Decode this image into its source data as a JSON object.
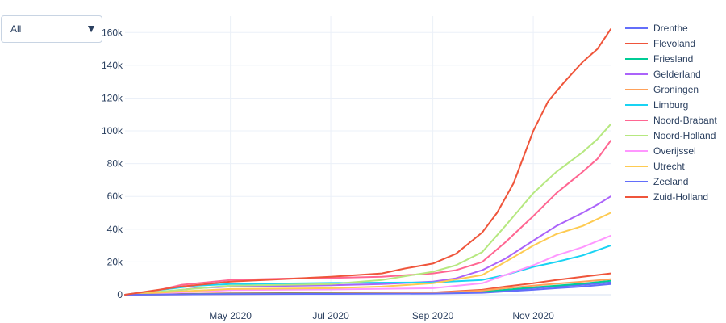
{
  "dropdown": {
    "selected": "All",
    "arrow_icon": "triangle-down-icon"
  },
  "chart_data": {
    "type": "line",
    "x_start": "2020-02-27",
    "x_end": "2020-12-18",
    "x_ticks": [
      {
        "date": "2020-05-01",
        "label": "May 2020"
      },
      {
        "date": "2020-07-01",
        "label": "Jul 2020"
      },
      {
        "date": "2020-09-01",
        "label": "Sep 2020"
      },
      {
        "date": "2020-11-01",
        "label": "Nov 2020"
      }
    ],
    "ylim": [
      0,
      170000
    ],
    "y_ticks": [
      {
        "value": 0,
        "label": "0"
      },
      {
        "value": 20000,
        "label": "20k"
      },
      {
        "value": 40000,
        "label": "40k"
      },
      {
        "value": 60000,
        "label": "60k"
      },
      {
        "value": 80000,
        "label": "80k"
      },
      {
        "value": 100000,
        "label": "100k"
      },
      {
        "value": 120000,
        "label": "120k"
      },
      {
        "value": 140000,
        "label": "140k"
      },
      {
        "value": 160000,
        "label": "160k"
      }
    ],
    "grid": true,
    "legend_position": "right",
    "series": [
      {
        "name": "Drenthe",
        "color": "#636efa",
        "points": [
          [
            "2020-02-27",
            0
          ],
          [
            "2020-04-01",
            300
          ],
          [
            "2020-05-01",
            600
          ],
          [
            "2020-07-01",
            750
          ],
          [
            "2020-09-01",
            900
          ],
          [
            "2020-10-01",
            1500
          ],
          [
            "2020-10-15",
            2500
          ],
          [
            "2020-11-01",
            4000
          ],
          [
            "2020-11-15",
            5000
          ],
          [
            "2020-12-01",
            6000
          ],
          [
            "2020-12-18",
            7500
          ]
        ]
      },
      {
        "name": "Flevoland",
        "color": "#ef553b",
        "points": [
          [
            "2020-02-27",
            0
          ],
          [
            "2020-04-01",
            500
          ],
          [
            "2020-05-01",
            900
          ],
          [
            "2020-07-01",
            1100
          ],
          [
            "2020-09-01",
            1400
          ],
          [
            "2020-10-01",
            3000
          ],
          [
            "2020-10-15",
            5000
          ],
          [
            "2020-11-01",
            7000
          ],
          [
            "2020-11-15",
            9000
          ],
          [
            "2020-12-01",
            11000
          ],
          [
            "2020-12-18",
            13000
          ]
        ]
      },
      {
        "name": "Friesland",
        "color": "#00cc96",
        "points": [
          [
            "2020-02-27",
            0
          ],
          [
            "2020-04-01",
            300
          ],
          [
            "2020-05-01",
            600
          ],
          [
            "2020-07-01",
            800
          ],
          [
            "2020-09-01",
            1000
          ],
          [
            "2020-10-01",
            1800
          ],
          [
            "2020-10-15",
            3000
          ],
          [
            "2020-11-01",
            4500
          ],
          [
            "2020-11-15",
            5500
          ],
          [
            "2020-12-01",
            6800
          ],
          [
            "2020-12-18",
            8500
          ]
        ]
      },
      {
        "name": "Gelderland",
        "color": "#ab63fa",
        "points": [
          [
            "2020-02-27",
            0
          ],
          [
            "2020-03-20",
            1500
          ],
          [
            "2020-04-10",
            4000
          ],
          [
            "2020-05-01",
            5000
          ],
          [
            "2020-07-01",
            5800
          ],
          [
            "2020-08-01",
            6500
          ],
          [
            "2020-09-01",
            8000
          ],
          [
            "2020-09-15",
            10000
          ],
          [
            "2020-10-01",
            15000
          ],
          [
            "2020-10-15",
            22000
          ],
          [
            "2020-11-01",
            33000
          ],
          [
            "2020-11-15",
            42000
          ],
          [
            "2020-12-01",
            50000
          ],
          [
            "2020-12-10",
            55000
          ],
          [
            "2020-12-18",
            60000
          ]
        ]
      },
      {
        "name": "Groningen",
        "color": "#ffa15a",
        "points": [
          [
            "2020-02-27",
            0
          ],
          [
            "2020-04-01",
            200
          ],
          [
            "2020-05-01",
            400
          ],
          [
            "2020-07-01",
            600
          ],
          [
            "2020-09-01",
            1200
          ],
          [
            "2020-10-01",
            2500
          ],
          [
            "2020-10-15",
            4000
          ],
          [
            "2020-11-01",
            5500
          ],
          [
            "2020-11-15",
            6800
          ],
          [
            "2020-12-01",
            8000
          ],
          [
            "2020-12-18",
            9500
          ]
        ]
      },
      {
        "name": "Limburg",
        "color": "#19d3f3",
        "points": [
          [
            "2020-02-27",
            0
          ],
          [
            "2020-03-20",
            3000
          ],
          [
            "2020-04-10",
            5500
          ],
          [
            "2020-05-01",
            6500
          ],
          [
            "2020-07-01",
            7200
          ],
          [
            "2020-09-01",
            7500
          ],
          [
            "2020-10-01",
            9000
          ],
          [
            "2020-10-15",
            12000
          ],
          [
            "2020-11-01",
            17000
          ],
          [
            "2020-11-15",
            20000
          ],
          [
            "2020-12-01",
            24000
          ],
          [
            "2020-12-18",
            30000
          ]
        ]
      },
      {
        "name": "Noord-Brabant",
        "color": "#ff6692",
        "points": [
          [
            "2020-02-27",
            0
          ],
          [
            "2020-03-15",
            2000
          ],
          [
            "2020-04-01",
            6000
          ],
          [
            "2020-05-01",
            9000
          ],
          [
            "2020-06-01",
            9800
          ],
          [
            "2020-07-01",
            10200
          ],
          [
            "2020-08-01",
            11000
          ],
          [
            "2020-09-01",
            13000
          ],
          [
            "2020-09-15",
            15000
          ],
          [
            "2020-10-01",
            20000
          ],
          [
            "2020-10-15",
            32000
          ],
          [
            "2020-11-01",
            48000
          ],
          [
            "2020-11-15",
            62000
          ],
          [
            "2020-12-01",
            75000
          ],
          [
            "2020-12-10",
            83000
          ],
          [
            "2020-12-18",
            94000
          ]
        ]
      },
      {
        "name": "Noord-Holland",
        "color": "#b6e880",
        "points": [
          [
            "2020-02-27",
            0
          ],
          [
            "2020-04-01",
            3000
          ],
          [
            "2020-05-01",
            5500
          ],
          [
            "2020-07-01",
            6500
          ],
          [
            "2020-08-01",
            9000
          ],
          [
            "2020-09-01",
            14000
          ],
          [
            "2020-09-15",
            18000
          ],
          [
            "2020-10-01",
            26000
          ],
          [
            "2020-10-15",
            42000
          ],
          [
            "2020-11-01",
            62000
          ],
          [
            "2020-11-15",
            75000
          ],
          [
            "2020-12-01",
            87000
          ],
          [
            "2020-12-10",
            95000
          ],
          [
            "2020-12-18",
            104000
          ]
        ]
      },
      {
        "name": "Overijssel",
        "color": "#ff97ff",
        "points": [
          [
            "2020-02-27",
            0
          ],
          [
            "2020-04-01",
            1500
          ],
          [
            "2020-05-01",
            2800
          ],
          [
            "2020-07-01",
            3200
          ],
          [
            "2020-09-01",
            4000
          ],
          [
            "2020-10-01",
            7000
          ],
          [
            "2020-10-15",
            12000
          ],
          [
            "2020-11-01",
            18000
          ],
          [
            "2020-11-15",
            24000
          ],
          [
            "2020-12-01",
            29000
          ],
          [
            "2020-12-18",
            36000
          ]
        ]
      },
      {
        "name": "Utrecht",
        "color": "#fecb52",
        "points": [
          [
            "2020-02-27",
            0
          ],
          [
            "2020-04-01",
            2000
          ],
          [
            "2020-05-01",
            3500
          ],
          [
            "2020-07-01",
            4000
          ],
          [
            "2020-08-01",
            5000
          ],
          [
            "2020-09-01",
            7000
          ],
          [
            "2020-10-01",
            12000
          ],
          [
            "2020-10-15",
            20000
          ],
          [
            "2020-11-01",
            30000
          ],
          [
            "2020-11-15",
            37000
          ],
          [
            "2020-12-01",
            42000
          ],
          [
            "2020-12-18",
            50000
          ]
        ]
      },
      {
        "name": "Zeeland",
        "color": "#636efa",
        "points": [
          [
            "2020-02-27",
            0
          ],
          [
            "2020-04-01",
            200
          ],
          [
            "2020-05-01",
            400
          ],
          [
            "2020-07-01",
            500
          ],
          [
            "2020-09-01",
            700
          ],
          [
            "2020-10-01",
            1200
          ],
          [
            "2020-10-15",
            2000
          ],
          [
            "2020-11-01",
            3000
          ],
          [
            "2020-11-15",
            4000
          ],
          [
            "2020-12-01",
            5000
          ],
          [
            "2020-12-18",
            6500
          ]
        ]
      },
      {
        "name": "Zuid-Holland",
        "color": "#ef553b",
        "points": [
          [
            "2020-02-27",
            0
          ],
          [
            "2020-03-15",
            2500
          ],
          [
            "2020-04-01",
            5000
          ],
          [
            "2020-05-01",
            8000
          ],
          [
            "2020-06-01",
            9500
          ],
          [
            "2020-07-01",
            11000
          ],
          [
            "2020-08-01",
            13000
          ],
          [
            "2020-08-15",
            16000
          ],
          [
            "2020-09-01",
            19000
          ],
          [
            "2020-09-15",
            25000
          ],
          [
            "2020-10-01",
            38000
          ],
          [
            "2020-10-10",
            50000
          ],
          [
            "2020-10-20",
            68000
          ],
          [
            "2020-11-01",
            100000
          ],
          [
            "2020-11-10",
            118000
          ],
          [
            "2020-11-20",
            130000
          ],
          [
            "2020-12-01",
            142000
          ],
          [
            "2020-12-10",
            150000
          ],
          [
            "2020-12-18",
            162000
          ]
        ]
      }
    ]
  }
}
